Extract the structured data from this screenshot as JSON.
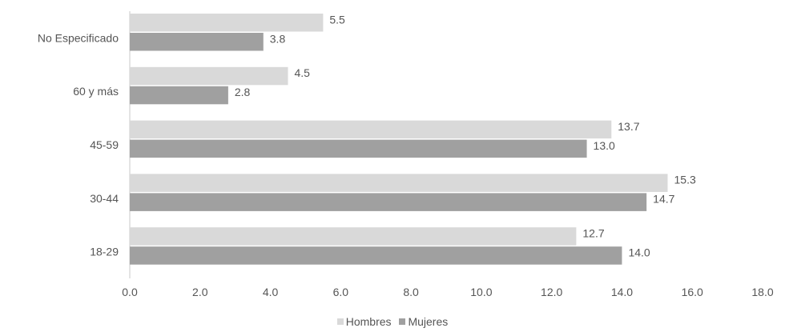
{
  "colors": {
    "Hombres": "#d9d9d9",
    "Mujeres": "#a0a0a0",
    "axis_line": "#c8c8c8",
    "text": "#555555"
  },
  "chart_data": {
    "type": "bar",
    "orientation": "horizontal",
    "categories": [
      "No Especificado",
      "60 y más",
      "45-59",
      "30-44",
      "18-29"
    ],
    "series": [
      {
        "name": "Hombres",
        "values": [
          5.5,
          4.5,
          13.7,
          15.3,
          12.7
        ]
      },
      {
        "name": "Mujeres",
        "values": [
          3.8,
          2.8,
          13.0,
          14.7,
          14.0
        ]
      }
    ],
    "xlim": [
      0,
      18
    ],
    "x_ticks": [
      "0.0",
      "2.0",
      "4.0",
      "6.0",
      "8.0",
      "10.0",
      "12.0",
      "14.0",
      "16.0",
      "18.0"
    ],
    "grid": false,
    "legend_position": "bottom",
    "data_labels": true
  },
  "legend": {
    "items": [
      {
        "label": "Hombres"
      },
      {
        "label": "Mujeres"
      }
    ]
  }
}
